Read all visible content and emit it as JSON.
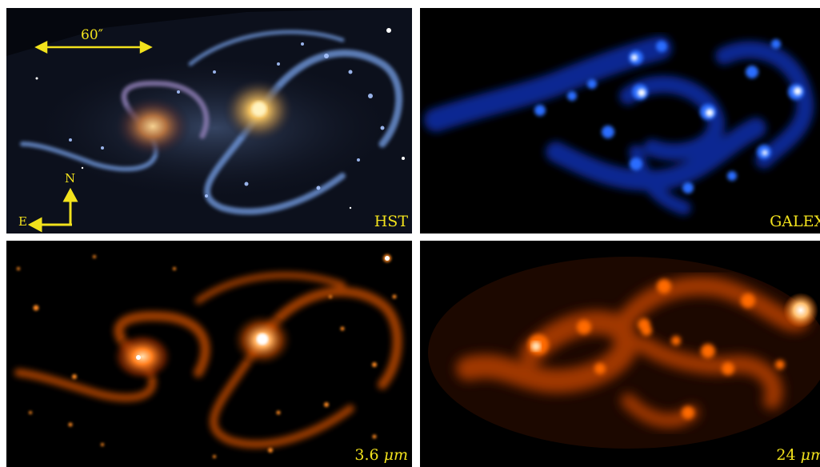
{
  "panels": {
    "hst": {
      "label": "HST",
      "scale_bar": "60″",
      "compass": {
        "north": "N",
        "east": "E"
      }
    },
    "galex": {
      "label": "GALEX"
    },
    "irac": {
      "label_value": "3.6",
      "label_unit": "μm"
    },
    "mips": {
      "label_value": "24",
      "label_unit": "μm"
    }
  },
  "colors": {
    "label": "#f2e21c",
    "hst_palette": [
      "#0a0d18",
      "#5a7fc0",
      "#e8c070",
      "#ffe9a8"
    ],
    "galex_palette": [
      "#000000",
      "#0a2a9a",
      "#2a6dff",
      "#ffffff"
    ],
    "irac_palette": [
      "#000000",
      "#a83a00",
      "#ff7a10",
      "#ffffff"
    ],
    "mips_palette": [
      "#000000",
      "#8a2a00",
      "#ff6a00",
      "#ffffff"
    ]
  }
}
